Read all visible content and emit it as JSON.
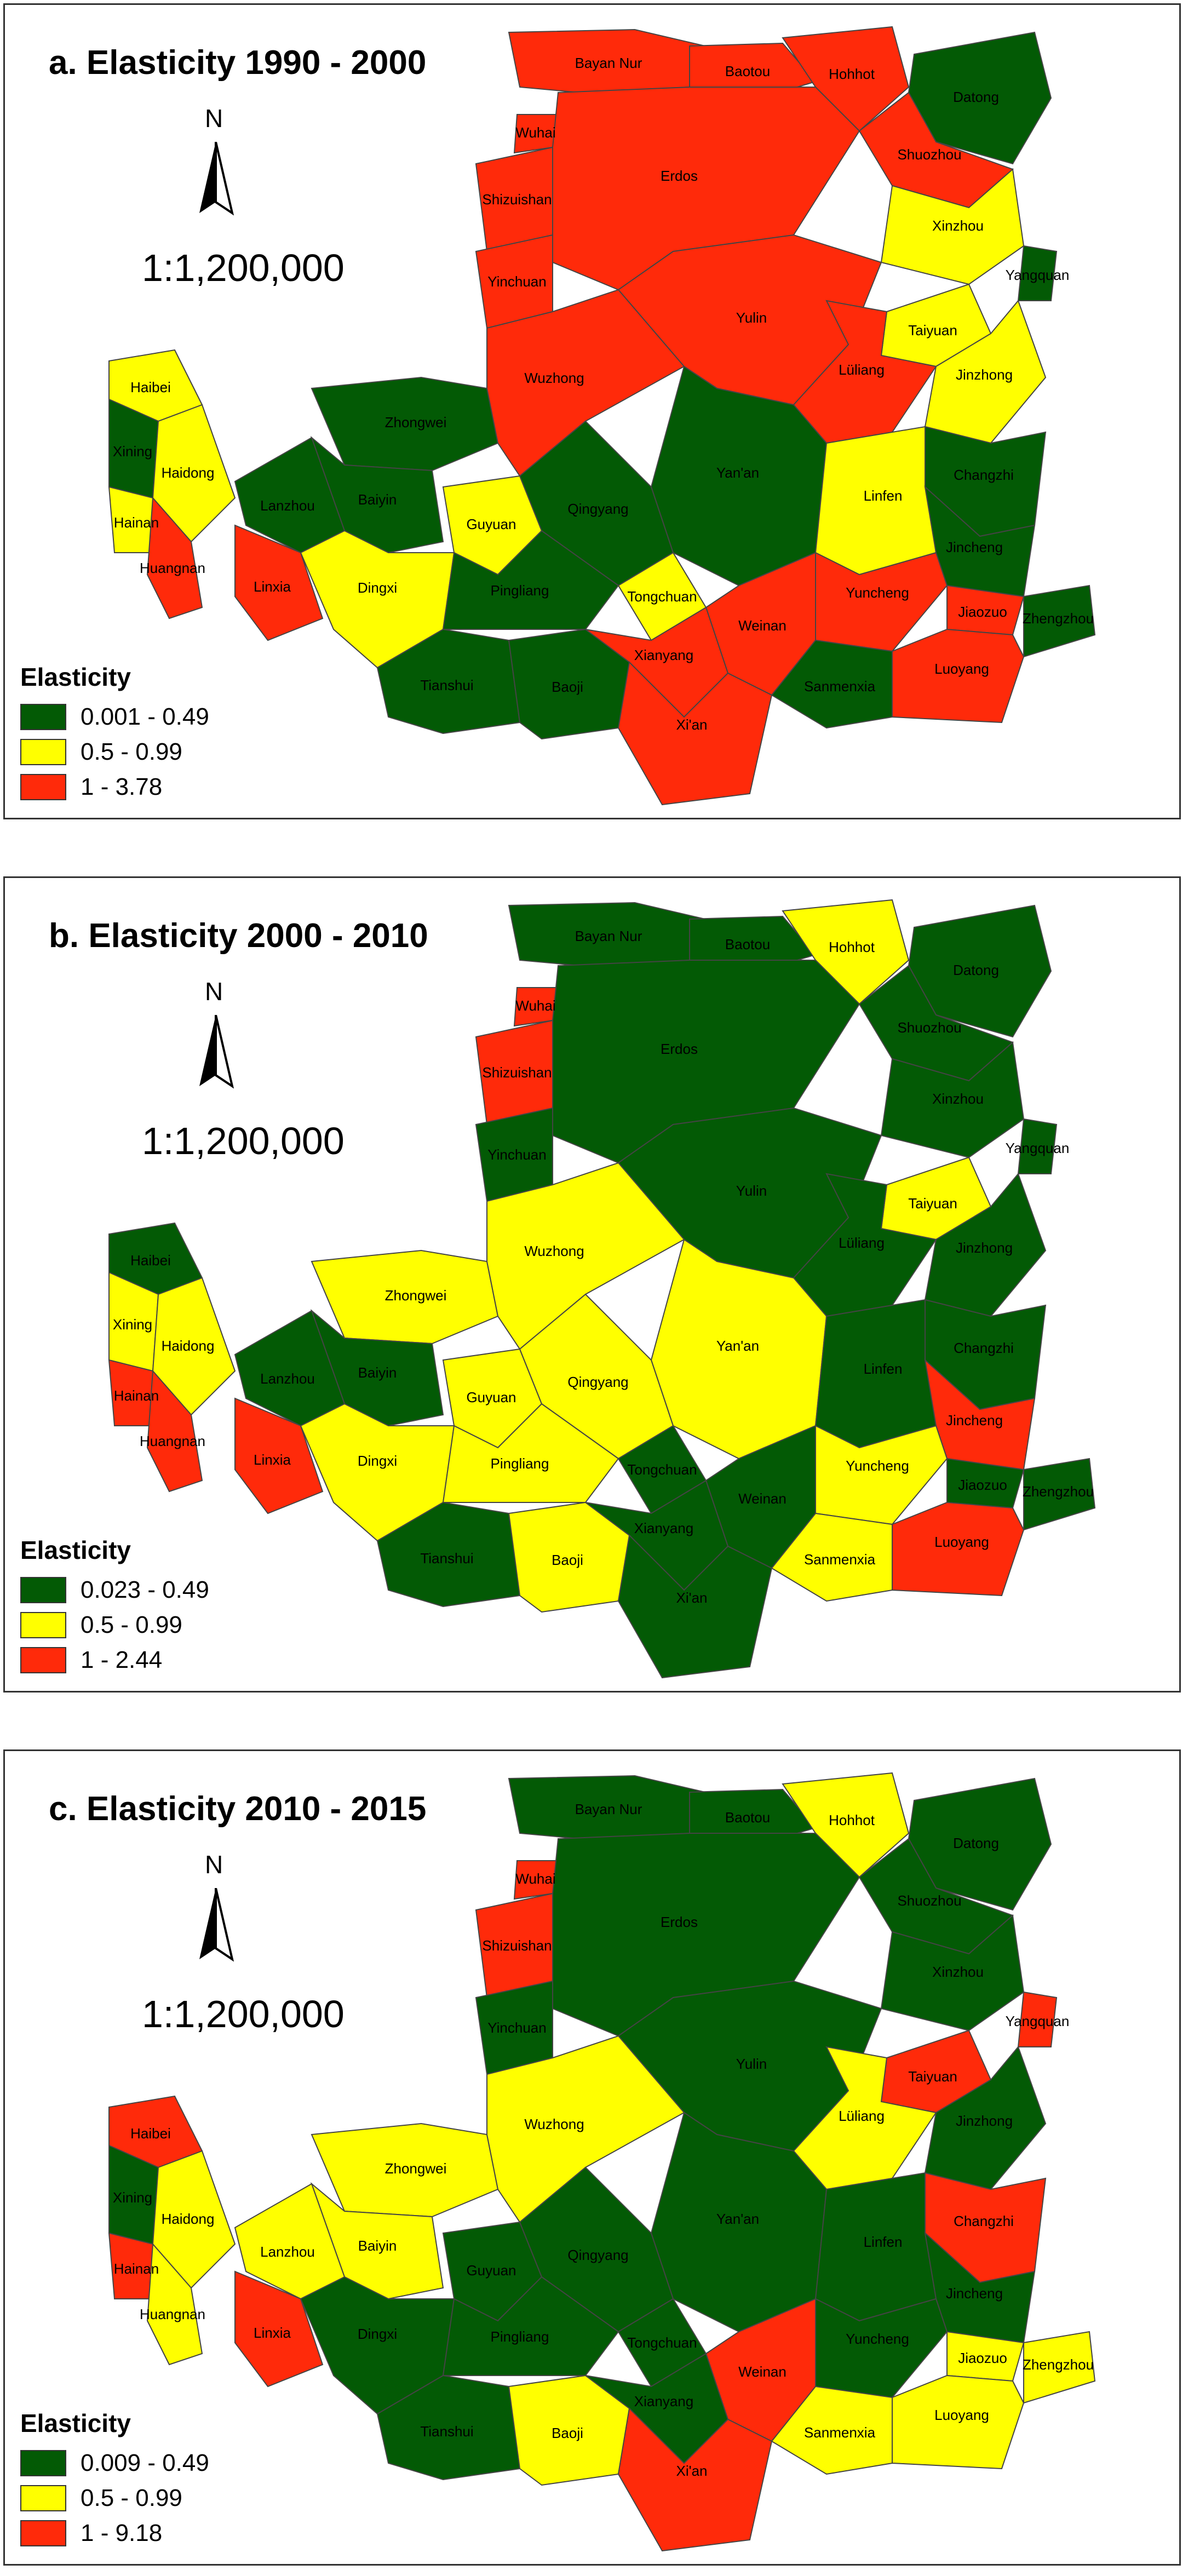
{
  "north_label": "N",
  "scale": "1:1,200,000",
  "legend_title": "Elasticity",
  "colors": {
    "low": "#035A05",
    "mid": "#FFFF00",
    "high": "#FF2A0A",
    "border": "#444444"
  },
  "panels": [
    {
      "title": "a. Elasticity 1990 - 2000",
      "legend": [
        "0.001 - 0.49",
        "0.5 - 0.99",
        "1 - 3.78"
      ],
      "regions": {
        "Bayan Nur": "high",
        "Baotou": "high",
        "Hohhot": "high",
        "Datong": "low",
        "Shuozhou": "high",
        "Wuhai": "high",
        "Erdos": "high",
        "Shizuishan": "high",
        "Xinzhou": "mid",
        "Yangquan": "low",
        "Yinchuan": "high",
        "Yulin": "high",
        "Taiyuan": "mid",
        "Lüliang": "high",
        "Jinzhong": "mid",
        "Haibei": "mid",
        "Zhongwei": "low",
        "Wuzhong": "high",
        "Changzhi": "low",
        "Xining": "low",
        "Baiyin": "low",
        "Haidong": "mid",
        "Lanzhou": "low",
        "Yan'an": "low",
        "Linfen": "mid",
        "Hainan": "mid",
        "Huangnan": "high",
        "Guyuan": "mid",
        "Qingyang": "low",
        "Jincheng": "low",
        "Linxia": "high",
        "Dingxi": "mid",
        "Pingliang": "low",
        "Tongchuan": "mid",
        "Yuncheng": "high",
        "Jiaozuo": "high",
        "Weinan": "high",
        "Zhengzhou": "low",
        "Tianshui": "low",
        "Baoji": "low",
        "Xianyang": "high",
        "Sanmenxia": "low",
        "Luoyang": "high",
        "Xi'an": "high"
      }
    },
    {
      "title": "b. Elasticity 2000 - 2010",
      "legend": [
        "0.023 - 0.49",
        "0.5 - 0.99",
        "1 - 2.44"
      ],
      "regions": {
        "Bayan Nur": "low",
        "Baotou": "low",
        "Hohhot": "mid",
        "Datong": "low",
        "Shuozhou": "low",
        "Wuhai": "high",
        "Erdos": "low",
        "Shizuishan": "high",
        "Xinzhou": "low",
        "Yangquan": "low",
        "Yinchuan": "low",
        "Yulin": "low",
        "Taiyuan": "mid",
        "Lüliang": "low",
        "Jinzhong": "low",
        "Haibei": "low",
        "Zhongwei": "mid",
        "Wuzhong": "mid",
        "Changzhi": "low",
        "Xining": "mid",
        "Baiyin": "low",
        "Haidong": "mid",
        "Lanzhou": "low",
        "Yan'an": "mid",
        "Linfen": "low",
        "Hainan": "high",
        "Huangnan": "high",
        "Guyuan": "mid",
        "Qingyang": "mid",
        "Jincheng": "high",
        "Linxia": "high",
        "Dingxi": "mid",
        "Pingliang": "mid",
        "Tongchuan": "low",
        "Yuncheng": "mid",
        "Jiaozuo": "low",
        "Weinan": "low",
        "Zhengzhou": "low",
        "Tianshui": "low",
        "Baoji": "mid",
        "Xianyang": "low",
        "Sanmenxia": "mid",
        "Luoyang": "high",
        "Xi'an": "low"
      }
    },
    {
      "title": "c. Elasticity 2010 - 2015",
      "legend": [
        "0.009 - 0.49",
        "0.5 - 0.99",
        "1 - 9.18"
      ],
      "regions": {
        "Bayan Nur": "low",
        "Baotou": "low",
        "Hohhot": "mid",
        "Datong": "low",
        "Shuozhou": "low",
        "Wuhai": "high",
        "Erdos": "low",
        "Shizuishan": "high",
        "Xinzhou": "low",
        "Yangquan": "high",
        "Yinchuan": "low",
        "Yulin": "low",
        "Taiyuan": "high",
        "Lüliang": "mid",
        "Jinzhong": "low",
        "Haibei": "high",
        "Zhongwei": "mid",
        "Wuzhong": "mid",
        "Changzhi": "high",
        "Xining": "low",
        "Baiyin": "mid",
        "Haidong": "mid",
        "Lanzhou": "mid",
        "Yan'an": "low",
        "Linfen": "low",
        "Hainan": "high",
        "Huangnan": "mid",
        "Guyuan": "low",
        "Qingyang": "low",
        "Jincheng": "low",
        "Linxia": "high",
        "Dingxi": "low",
        "Pingliang": "low",
        "Tongchuan": "low",
        "Yuncheng": "low",
        "Jiaozuo": "mid",
        "Weinan": "high",
        "Zhengzhou": "mid",
        "Tianshui": "low",
        "Baoji": "mid",
        "Xianyang": "low",
        "Sanmenxia": "mid",
        "Luoyang": "mid",
        "Xi'an": "high"
      }
    }
  ]
}
